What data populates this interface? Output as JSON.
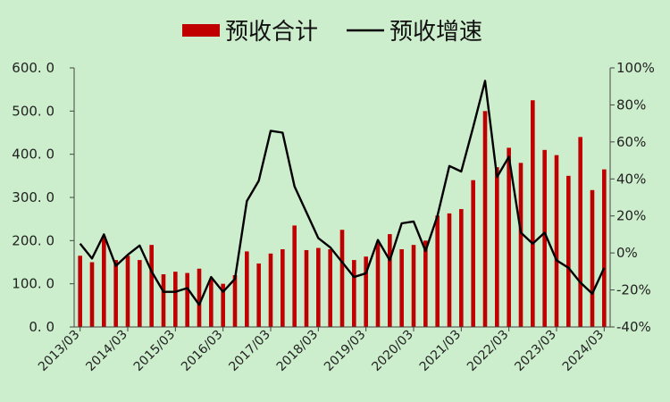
{
  "chart_data": {
    "type": "bar+line",
    "title": "",
    "legend": {
      "position": "top",
      "items": [
        {
          "name": "预收合计",
          "kind": "bar",
          "color": "#c00000"
        },
        {
          "name": "预收增速",
          "kind": "line",
          "color": "#000000"
        }
      ]
    },
    "x_tick_labels": [
      "2013/03",
      "2014/03",
      "2015/03",
      "2016/03",
      "2017/03",
      "2018/03",
      "2019/03",
      "2020/03",
      "2021/03",
      "2022/03",
      "2023/03",
      "2024/03"
    ],
    "y_left": {
      "min": 0,
      "max": 600,
      "step": 100,
      "tick_labels": [
        "0. 0",
        "100. 0",
        "200. 0",
        "300. 0",
        "400. 0",
        "500. 0",
        "600. 0"
      ]
    },
    "y_right": {
      "min": -40,
      "max": 100,
      "step": 20,
      "tick_labels": [
        "-40%",
        "-20%",
        "0%",
        "20%",
        "40%",
        "60%",
        "80%",
        "100%"
      ]
    },
    "grid": false,
    "series": [
      {
        "name": "预收合计",
        "axis": "left",
        "values": [
          165,
          150,
          210,
          155,
          165,
          155,
          190,
          122,
          128,
          125,
          135,
          110,
          100,
          120,
          175,
          147,
          170,
          180,
          235,
          178,
          183,
          180,
          225,
          155,
          163,
          195,
          215,
          180,
          190,
          200,
          258,
          263,
          273,
          340,
          500,
          370,
          415,
          380,
          525,
          410,
          398,
          350,
          440,
          317,
          365
        ]
      },
      {
        "name": "预收增速",
        "axis": "right",
        "values": [
          5,
          -3,
          10,
          -7,
          -1,
          4,
          -10,
          -21,
          -21,
          -19,
          -28,
          -13,
          -21,
          -14,
          28,
          39,
          66,
          65,
          36,
          22,
          8,
          3,
          -5,
          -13,
          -11,
          7,
          -4,
          16,
          17,
          1,
          20,
          47,
          44,
          68,
          93,
          41,
          52,
          11,
          5,
          11,
          -4,
          -8,
          -16,
          -22,
          -8
        ]
      }
    ]
  }
}
